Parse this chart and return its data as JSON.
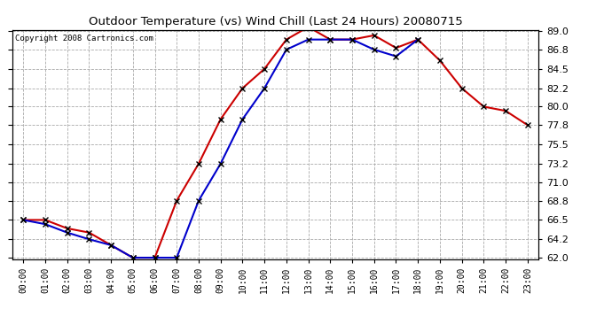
{
  "title": "Outdoor Temperature (vs) Wind Chill (Last 24 Hours) 20080715",
  "copyright": "Copyright 2008 Cartronics.com",
  "hours": [
    "00:00",
    "01:00",
    "02:00",
    "03:00",
    "04:00",
    "05:00",
    "06:00",
    "07:00",
    "08:00",
    "09:00",
    "10:00",
    "11:00",
    "12:00",
    "13:00",
    "14:00",
    "15:00",
    "16:00",
    "17:00",
    "18:00",
    "19:00",
    "20:00",
    "21:00",
    "22:00",
    "23:00"
  ],
  "temp": [
    66.5,
    66.5,
    65.5,
    65.0,
    63.5,
    62.0,
    62.0,
    68.8,
    73.2,
    78.5,
    82.2,
    84.5,
    88.0,
    89.5,
    88.0,
    88.0,
    88.5,
    87.0,
    88.0,
    85.5,
    82.2,
    80.0,
    79.5,
    77.8
  ],
  "windchill": [
    66.5,
    66.0,
    65.0,
    64.2,
    63.5,
    62.0,
    62.0,
    62.0,
    68.8,
    73.2,
    78.5,
    82.2,
    86.8,
    88.0,
    88.0,
    88.0,
    86.8,
    86.0,
    88.0,
    null,
    null,
    null,
    null,
    null
  ],
  "temp_color": "#cc0000",
  "windchill_color": "#0000cc",
  "bg_color": "#ffffff",
  "plot_bg_color": "#ffffff",
  "grid_color": "#aaaaaa",
  "ylim_min": 62.0,
  "ylim_max": 89.0,
  "yticks": [
    62.0,
    64.2,
    66.5,
    68.8,
    71.0,
    73.2,
    75.5,
    77.8,
    80.0,
    82.2,
    84.5,
    86.8,
    89.0
  ],
  "marker": "x",
  "marker_color": "#000000",
  "marker_size": 5,
  "linewidth": 1.5
}
